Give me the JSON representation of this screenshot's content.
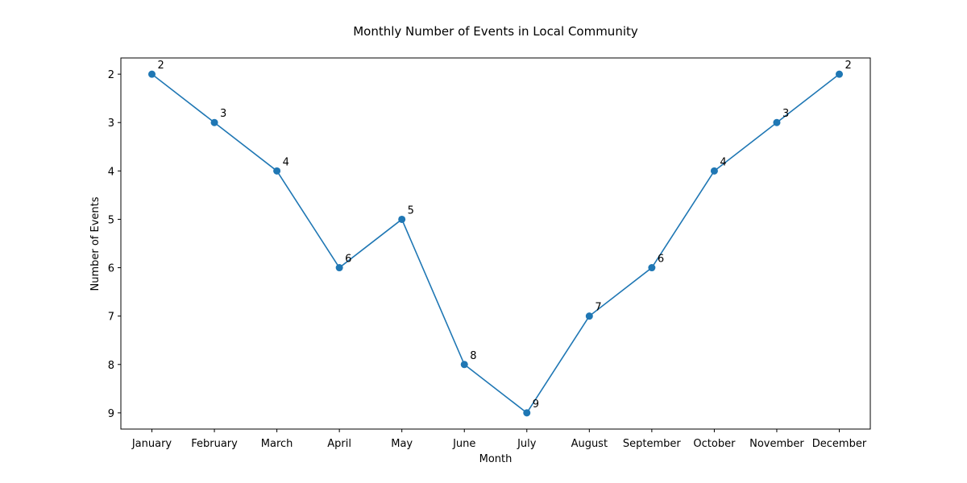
{
  "chart_data": {
    "type": "line",
    "title": "Monthly Number of Events in Local Community",
    "xlabel": "Month",
    "ylabel": "Number of Events",
    "categories": [
      "January",
      "February",
      "March",
      "April",
      "May",
      "June",
      "July",
      "August",
      "September",
      "October",
      "November",
      "December"
    ],
    "series": [
      {
        "values": [
          2,
          3,
          4,
          6,
          5,
          8,
          9,
          7,
          6,
          4,
          3,
          2
        ],
        "color": "#1f77b4"
      }
    ],
    "yticks": [
      2,
      3,
      4,
      5,
      6,
      7,
      8,
      9
    ],
    "ylim": [
      1.665,
      9.335
    ],
    "y_inverted": true,
    "grid": false,
    "data_labels": true
  }
}
